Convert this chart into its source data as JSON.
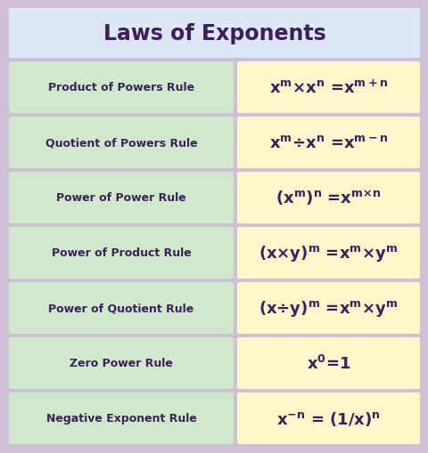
{
  "title": "Laws of Exponents",
  "title_color": "#3d1f5c",
  "title_bg": "#dce8f8",
  "bg_color": "#cfc0d8",
  "row_label_bg": "#d0e8cc",
  "row_formula_bg": "#fef7cc",
  "text_color": "#3d1f5c",
  "figsize": [
    4.81,
    5.1
  ],
  "dpi": 100,
  "rows": [
    {
      "label": "Product of Powers Rule",
      "formula": "x$^{\\mathbf{m}}$×x$^{\\mathbf{n}}$ =x$^{\\mathbf{m+n}}$"
    },
    {
      "label": "Quotient of Powers Rule",
      "formula": "x$^{\\mathbf{m}}$÷x$^{\\mathbf{n}}$ =x$^{\\mathbf{m-n}}$"
    },
    {
      "label": "Power of Power Rule",
      "formula": "(x$^{\\mathbf{m}}$)$^{\\mathbf{n}}$ =x$^{\\mathbf{m×n}}$"
    },
    {
      "label": "Power of Product Rule",
      "formula": "(x×y)$^{\\mathbf{m}}$ =x$^{\\mathbf{m}}$×y$^{\\mathbf{m}}$"
    },
    {
      "label": "Power of Quotient Rule",
      "formula": "(x÷y)$^{\\mathbf{m}}$ =x$^{\\mathbf{m}}$×y$^{\\mathbf{m}}$"
    },
    {
      "label": "Zero Power Rule",
      "formula": "x$^{\\mathbf{0}}$=1"
    },
    {
      "label": "Negative Exponent Rule",
      "formula": "x$^{\\mathbf{-n}}$ = (1/x)$^{\\mathbf{n}}$"
    }
  ]
}
